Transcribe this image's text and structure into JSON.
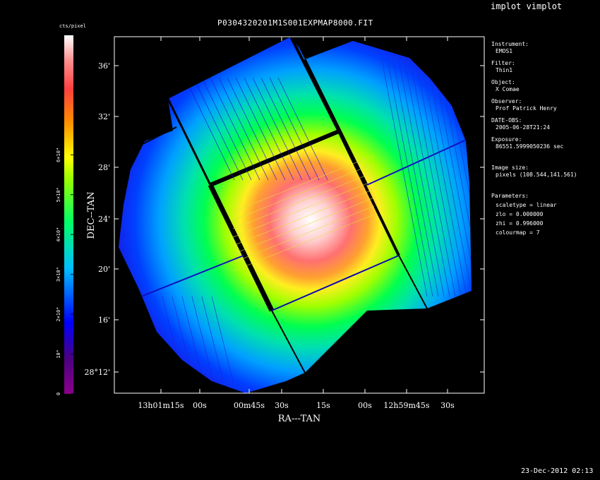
{
  "window": {
    "title": "implot vimplot"
  },
  "plot": {
    "title": "P0304320201M1S001EXPMAP8000.FIT"
  },
  "footer": {
    "date": "23-Dec-2012 02:13"
  },
  "colorbar": {
    "label": "cts/pixel",
    "min": 0,
    "max": 90000,
    "ticks": [
      {
        "value": 0,
        "label": "0"
      },
      {
        "value": 10000,
        "label": "10⁴"
      },
      {
        "value": 20000,
        "label": "2×10⁴"
      },
      {
        "value": 30000,
        "label": "3×10⁴"
      },
      {
        "value": 40000,
        "label": "4×10⁴"
      },
      {
        "value": 50000,
        "label": "5×10⁴"
      },
      {
        "value": 60000,
        "label": "6×10⁴"
      }
    ]
  },
  "info": {
    "instrument_label": "Instrument:",
    "instrument": "EMOS1",
    "filter_label": "Filter:",
    "filter": "Thin1",
    "object_label": "Object:",
    "object": "X Comae",
    "observer_label": "Observer:",
    "observer": "Prof Patrick Henry",
    "date_label": "DATE-OBS:",
    "date": "2005-06-28T21:24",
    "exposure_label": "Exposure:",
    "exposure": "86551.5999050236 sec",
    "size_label": "Image size:",
    "size": "pixels (108.544,141.561)",
    "params_label": "Parameters:",
    "scaletype": "scaletype = linear",
    "zlo": "zlo = 0.000000",
    "zhi": "zhi = 0.996000",
    "colourmap": "colourmap =    7"
  },
  "chart_data": {
    "type": "heatmap",
    "title": "P0304320201M1S001EXPMAP8000.FIT",
    "xlabel": "RA---TAN",
    "ylabel": "DEC--TAN",
    "colormap": "rainbow (purple-blue-cyan-green-yellow-red-white)",
    "x_ticks": [
      {
        "label": "13h01m15s"
      },
      {
        "label": "00s"
      },
      {
        "label": "00m45s"
      },
      {
        "label": "30s"
      },
      {
        "label": "15s"
      },
      {
        "label": "00s"
      },
      {
        "label": "12h59m45s"
      },
      {
        "label": "30s"
      }
    ],
    "y_ticks": [
      {
        "label": "28°12'"
      },
      {
        "label": "16'"
      },
      {
        "label": "20'"
      },
      {
        "label": "24'"
      },
      {
        "label": "28'"
      },
      {
        "label": "32'"
      },
      {
        "label": "36'"
      }
    ],
    "peak_location": "center",
    "grid": false
  }
}
